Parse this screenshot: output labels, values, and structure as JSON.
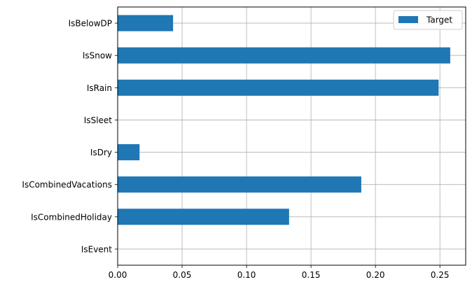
{
  "chart_data": {
    "type": "bar",
    "orientation": "horizontal",
    "categories": [
      "IsEvent",
      "IsCombinedHoliday",
      "IsCombinedVacations",
      "IsDry",
      "IsSleet",
      "IsRain",
      "IsSnow",
      "IsBelowDP"
    ],
    "series": [
      {
        "name": "Target",
        "values": [
          0.0,
          0.133,
          0.189,
          0.017,
          0.0,
          0.249,
          0.258,
          0.043
        ],
        "color": "#1f77b4"
      }
    ],
    "xlim": [
      0,
      0.27
    ],
    "xticks": [
      0.0,
      0.05,
      0.1,
      0.15,
      0.2,
      0.25
    ],
    "xtick_labels": [
      "0.00",
      "0.05",
      "0.10",
      "0.15",
      "0.20",
      "0.25"
    ],
    "grid": true,
    "legend_position": "top-right",
    "title": "",
    "xlabel": "",
    "ylabel": ""
  }
}
